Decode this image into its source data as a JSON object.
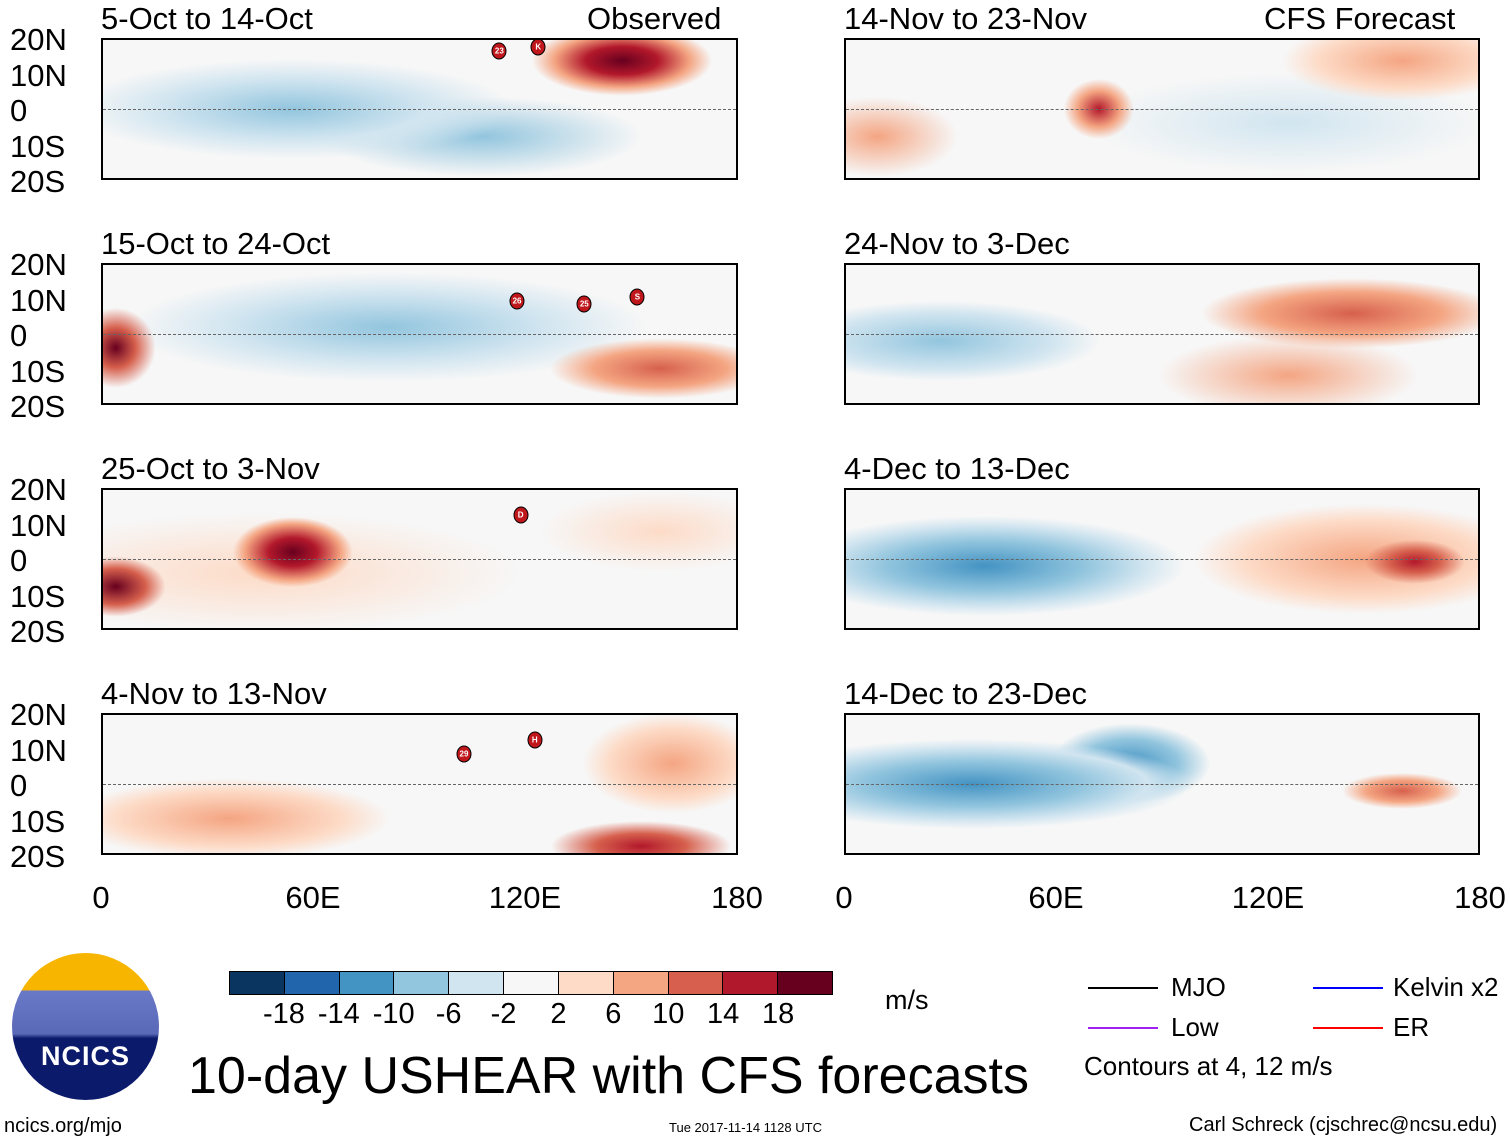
{
  "figure": {
    "title": "10-day USHEAR with CFS forecasts",
    "observed_label": "Observed",
    "forecast_label": "CFS Forecast",
    "units": "m/s",
    "website": "ncics.org/mjo",
    "timestamp": "Tue 2017-11-14 1128 UTC",
    "author": "Carl Schreck (cjschrec@ncsu.edu)",
    "logo_text": "NCICS"
  },
  "lat_labels": [
    "20N",
    "10N",
    "0",
    "10S",
    "20S"
  ],
  "lon_labels": [
    "0",
    "60E",
    "120E",
    "180"
  ],
  "panels": [
    {
      "title": "5-Oct to 14-Oct",
      "column": "observed",
      "markers": [
        {
          "label": "23",
          "lon": 112,
          "lat": 17
        },
        {
          "label": "K",
          "lon": 123,
          "lat": 18
        }
      ]
    },
    {
      "title": "15-Oct to 24-Oct",
      "column": "observed",
      "markers": [
        {
          "label": "26",
          "lon": 117,
          "lat": 10
        },
        {
          "label": "25",
          "lon": 136,
          "lat": 9
        },
        {
          "label": "S",
          "lon": 151,
          "lat": 11
        }
      ]
    },
    {
      "title": "25-Oct to 3-Nov",
      "column": "observed",
      "markers": [
        {
          "label": "D",
          "lon": 118,
          "lat": 13
        }
      ]
    },
    {
      "title": "4-Nov to 13-Nov",
      "column": "observed",
      "markers": [
        {
          "label": "29",
          "lon": 102,
          "lat": 9
        },
        {
          "label": "H",
          "lon": 122,
          "lat": 13
        }
      ]
    },
    {
      "title": "14-Nov to 23-Nov",
      "column": "forecast",
      "markers": []
    },
    {
      "title": "24-Nov to 3-Dec",
      "column": "forecast",
      "markers": []
    },
    {
      "title": "4-Dec to 13-Dec",
      "column": "forecast",
      "markers": []
    },
    {
      "title": "14-Dec to 23-Dec",
      "column": "forecast",
      "markers": []
    }
  ],
  "colorbar": {
    "labels": [
      "-18",
      "-14",
      "-10",
      "-6",
      "-2",
      "2",
      "6",
      "10",
      "14",
      "18"
    ],
    "colors": [
      "#0b3561",
      "#2166ac",
      "#4393c3",
      "#92c5de",
      "#d1e5f0",
      "#f7f7f7",
      "#fddbc7",
      "#f4a582",
      "#d6604d",
      "#b2182b",
      "#67001f"
    ]
  },
  "legend": {
    "items": [
      {
        "label": "MJO",
        "color": "#000000"
      },
      {
        "label": "Kelvin x2",
        "color": "#0000ff"
      },
      {
        "label": "Low",
        "color": "#a020f0"
      },
      {
        "label": "ER",
        "color": "#ff0000"
      }
    ],
    "note": "Contours at 4, 12 m/s"
  }
}
